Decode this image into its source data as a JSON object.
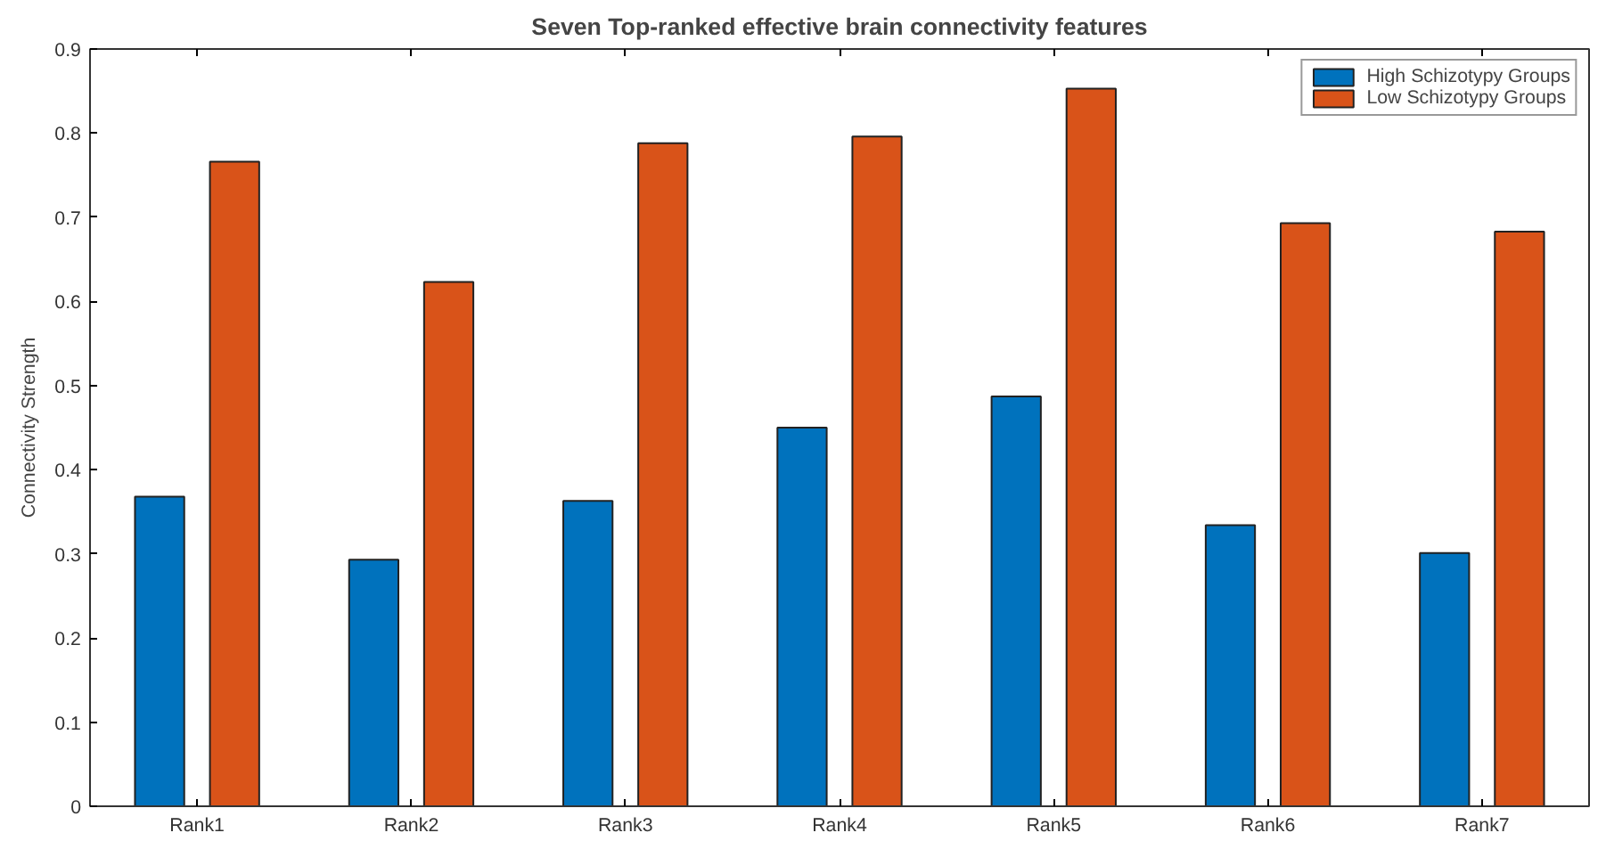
{
  "chart_data": {
    "type": "bar",
    "title": "Seven Top-ranked effective brain connectivity features",
    "ylabel": "Connectivity Strength",
    "categories": [
      "Rank1",
      "Rank2",
      "Rank3",
      "Rank4",
      "Rank5",
      "Rank6",
      "Rank7"
    ],
    "series": [
      {
        "name": "High Schizotypy Groups",
        "color": "#0072bd",
        "values": [
          0.368,
          0.293,
          0.363,
          0.45,
          0.487,
          0.334,
          0.301
        ]
      },
      {
        "name": "Low Schizotypy Groups",
        "color": "#d95319",
        "values": [
          0.766,
          0.623,
          0.788,
          0.796,
          0.853,
          0.693,
          0.683
        ]
      }
    ],
    "ylim": [
      0,
      0.9
    ],
    "yticks": [
      0,
      0.1,
      0.2,
      0.3,
      0.4,
      0.5,
      0.6,
      0.7,
      0.8,
      0.9
    ],
    "grid": false,
    "legend": "top right"
  }
}
